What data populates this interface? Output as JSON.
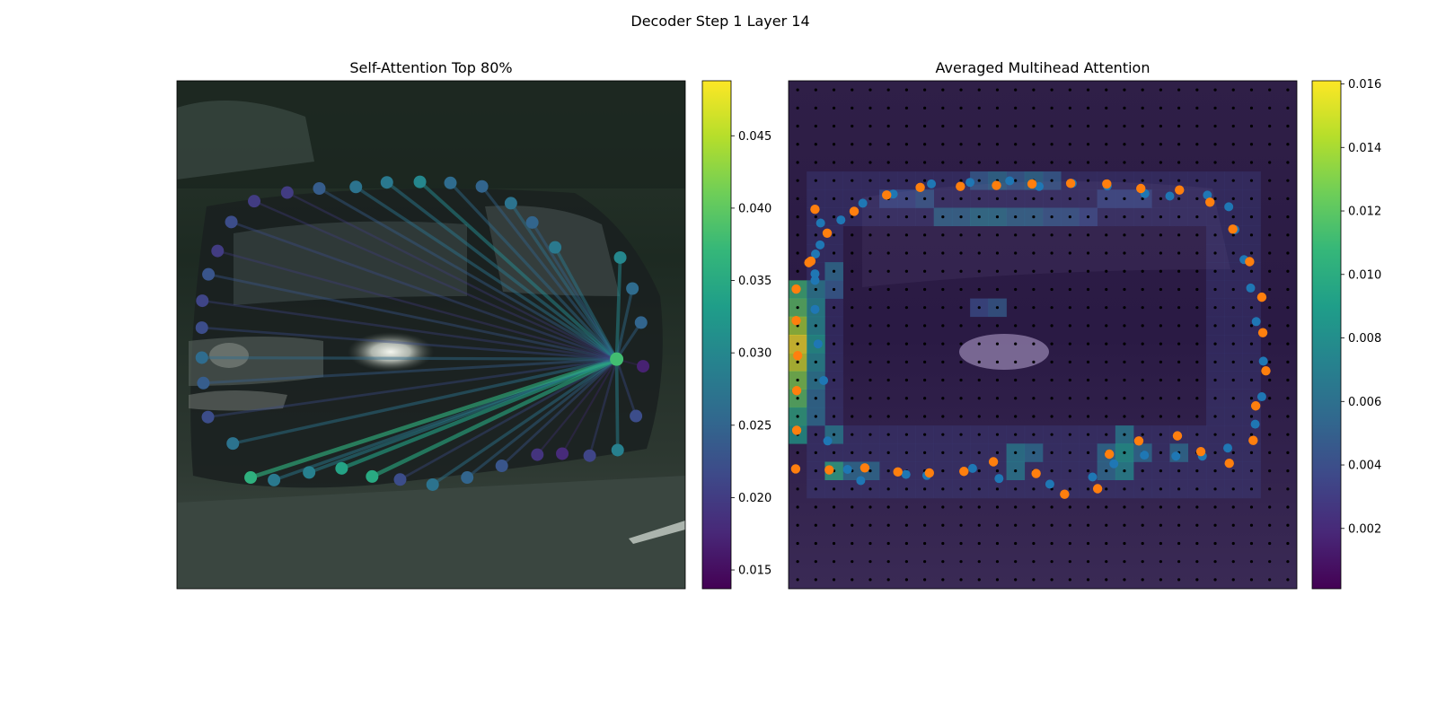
{
  "figure": {
    "suptitle": "Decoder Step 1 Layer 14"
  },
  "colors": {
    "viridis": [
      "#440154",
      "#482878",
      "#3e4989",
      "#31688e",
      "#26828e",
      "#1f9e89",
      "#35b779",
      "#6ece58",
      "#b5de2b",
      "#fde725"
    ],
    "gt_points": "#ff7f0e",
    "pred_points": "#1f77b4",
    "grid_dots": "#000000",
    "photo_road": "#3a463f",
    "photo_dark": "#1b2721"
  },
  "chart_data": [
    {
      "type": "scatter",
      "title": "Self-Attention Top 80%",
      "source_index": 9,
      "colorbar": {
        "ticks": [
          0.015,
          0.02,
          0.025,
          0.03,
          0.035,
          0.04,
          0.045
        ],
        "tick_labels": [
          "0.015",
          "0.020",
          "0.025",
          "0.030",
          "0.035",
          "0.040",
          "0.045"
        ],
        "vmin": 0.0137,
        "vmax": 0.0488
      },
      "nodes": [
        {
          "x": 0.152,
          "y": 0.237,
          "w": 0.02
        },
        {
          "x": 0.217,
          "y": 0.22,
          "w": 0.02
        },
        {
          "x": 0.28,
          "y": 0.212,
          "w": 0.024
        },
        {
          "x": 0.352,
          "y": 0.209,
          "w": 0.027
        },
        {
          "x": 0.413,
          "y": 0.2,
          "w": 0.028
        },
        {
          "x": 0.478,
          "y": 0.199,
          "w": 0.03
        },
        {
          "x": 0.538,
          "y": 0.201,
          "w": 0.026
        },
        {
          "x": 0.6,
          "y": 0.208,
          "w": 0.025
        },
        {
          "x": 0.657,
          "y": 0.241,
          "w": 0.027
        },
        {
          "x": 0.865,
          "y": 0.548,
          "w": 0.038
        },
        {
          "x": 0.917,
          "y": 0.562,
          "w": 0.017
        },
        {
          "x": 0.903,
          "y": 0.66,
          "w": 0.022
        },
        {
          "x": 0.867,
          "y": 0.727,
          "w": 0.029
        },
        {
          "x": 0.812,
          "y": 0.738,
          "w": 0.021
        },
        {
          "x": 0.758,
          "y": 0.734,
          "w": 0.018
        },
        {
          "x": 0.709,
          "y": 0.736,
          "w": 0.019
        },
        {
          "x": 0.639,
          "y": 0.758,
          "w": 0.023
        },
        {
          "x": 0.571,
          "y": 0.781,
          "w": 0.025
        },
        {
          "x": 0.503,
          "y": 0.795,
          "w": 0.027
        },
        {
          "x": 0.439,
          "y": 0.785,
          "w": 0.022
        },
        {
          "x": 0.384,
          "y": 0.779,
          "w": 0.035
        },
        {
          "x": 0.324,
          "y": 0.763,
          "w": 0.034
        },
        {
          "x": 0.26,
          "y": 0.771,
          "w": 0.029
        },
        {
          "x": 0.191,
          "y": 0.786,
          "w": 0.028
        },
        {
          "x": 0.145,
          "y": 0.781,
          "w": 0.036
        },
        {
          "x": 0.11,
          "y": 0.714,
          "w": 0.027
        },
        {
          "x": 0.061,
          "y": 0.662,
          "w": 0.022
        },
        {
          "x": 0.052,
          "y": 0.595,
          "w": 0.024
        },
        {
          "x": 0.049,
          "y": 0.545,
          "w": 0.026
        },
        {
          "x": 0.049,
          "y": 0.486,
          "w": 0.022
        },
        {
          "x": 0.05,
          "y": 0.433,
          "w": 0.021
        },
        {
          "x": 0.062,
          "y": 0.381,
          "w": 0.023
        },
        {
          "x": 0.08,
          "y": 0.335,
          "w": 0.02
        },
        {
          "x": 0.107,
          "y": 0.278,
          "w": 0.022
        },
        {
          "x": 0.699,
          "y": 0.279,
          "w": 0.025
        },
        {
          "x": 0.744,
          "y": 0.328,
          "w": 0.028
        },
        {
          "x": 0.872,
          "y": 0.348,
          "w": 0.03
        },
        {
          "x": 0.896,
          "y": 0.409,
          "w": 0.026
        },
        {
          "x": 0.913,
          "y": 0.476,
          "w": 0.025
        }
      ]
    },
    {
      "type": "heatmap",
      "title": "Averaged Multihead Attention",
      "colorbar": {
        "ticks": [
          0.002,
          0.004,
          0.006,
          0.008,
          0.01,
          0.012,
          0.014,
          0.016
        ],
        "tick_labels": [
          "0.002",
          "0.004",
          "0.006",
          "0.008",
          "0.010",
          "0.012",
          "0.014",
          "0.016"
        ],
        "vmin": 0.0001,
        "vmax": 0.0161
      },
      "grid": {
        "rows": 28,
        "cols": 28
      },
      "hot_cells": [
        {
          "r": 11,
          "c": 0,
          "v": 0.011
        },
        {
          "r": 12,
          "c": 0,
          "v": 0.012
        },
        {
          "r": 13,
          "c": 0,
          "v": 0.014
        },
        {
          "r": 14,
          "c": 0,
          "v": 0.016
        },
        {
          "r": 15,
          "c": 0,
          "v": 0.015
        },
        {
          "r": 16,
          "c": 0,
          "v": 0.013
        },
        {
          "r": 17,
          "c": 0,
          "v": 0.012
        },
        {
          "r": 18,
          "c": 0,
          "v": 0.01
        },
        {
          "r": 19,
          "c": 0,
          "v": 0.009
        },
        {
          "r": 11,
          "c": 1,
          "v": 0.007
        },
        {
          "r": 12,
          "c": 1,
          "v": 0.008
        },
        {
          "r": 13,
          "c": 1,
          "v": 0.008
        },
        {
          "r": 14,
          "c": 1,
          "v": 0.009
        },
        {
          "r": 15,
          "c": 1,
          "v": 0.008
        },
        {
          "r": 16,
          "c": 1,
          "v": 0.007
        },
        {
          "r": 17,
          "c": 1,
          "v": 0.006
        },
        {
          "r": 18,
          "c": 1,
          "v": 0.006
        },
        {
          "r": 10,
          "c": 2,
          "v": 0.006
        },
        {
          "r": 11,
          "c": 2,
          "v": 0.005
        },
        {
          "r": 19,
          "c": 2,
          "v": 0.007
        },
        {
          "r": 21,
          "c": 2,
          "v": 0.01
        },
        {
          "r": 21,
          "c": 3,
          "v": 0.006
        },
        {
          "r": 21,
          "c": 4,
          "v": 0.006
        },
        {
          "r": 20,
          "c": 12,
          "v": 0.007
        },
        {
          "r": 21,
          "c": 12,
          "v": 0.007
        },
        {
          "r": 20,
          "c": 13,
          "v": 0.006
        },
        {
          "r": 20,
          "c": 17,
          "v": 0.006
        },
        {
          "r": 21,
          "c": 17,
          "v": 0.006
        },
        {
          "r": 19,
          "c": 18,
          "v": 0.007
        },
        {
          "r": 20,
          "c": 18,
          "v": 0.009
        },
        {
          "r": 21,
          "c": 18,
          "v": 0.008
        },
        {
          "r": 20,
          "c": 19,
          "v": 0.006
        },
        {
          "r": 20,
          "c": 21,
          "v": 0.006
        },
        {
          "r": 5,
          "c": 10,
          "v": 0.005
        },
        {
          "r": 5,
          "c": 11,
          "v": 0.006
        },
        {
          "r": 5,
          "c": 12,
          "v": 0.005
        },
        {
          "r": 5,
          "c": 13,
          "v": 0.006
        },
        {
          "r": 5,
          "c": 14,
          "v": 0.005
        },
        {
          "r": 7,
          "c": 8,
          "v": 0.006
        },
        {
          "r": 7,
          "c": 9,
          "v": 0.006
        },
        {
          "r": 7,
          "c": 10,
          "v": 0.007
        },
        {
          "r": 7,
          "c": 11,
          "v": 0.007
        },
        {
          "r": 7,
          "c": 12,
          "v": 0.006
        },
        {
          "r": 7,
          "c": 13,
          "v": 0.006
        },
        {
          "r": 7,
          "c": 14,
          "v": 0.005
        },
        {
          "r": 7,
          "c": 15,
          "v": 0.005
        },
        {
          "r": 7,
          "c": 16,
          "v": 0.004
        },
        {
          "r": 6,
          "c": 5,
          "v": 0.004
        },
        {
          "r": 6,
          "c": 6,
          "v": 0.004
        },
        {
          "r": 6,
          "c": 7,
          "v": 0.005
        },
        {
          "r": 6,
          "c": 17,
          "v": 0.004
        },
        {
          "r": 6,
          "c": 18,
          "v": 0.004
        },
        {
          "r": 6,
          "c": 19,
          "v": 0.004
        },
        {
          "r": 12,
          "c": 10,
          "v": 0.004
        },
        {
          "r": 12,
          "c": 11,
          "v": 0.005
        }
      ],
      "background_value": 0.0016,
      "band_value": 0.0035,
      "gt_points": [
        [
          0.052,
          0.253
        ],
        [
          0.044,
          0.355
        ],
        [
          0.015,
          0.41
        ],
        [
          0.015,
          0.472
        ],
        [
          0.018,
          0.541
        ],
        [
          0.016,
          0.61
        ],
        [
          0.016,
          0.688
        ],
        [
          0.014,
          0.764
        ],
        [
          0.08,
          0.766
        ],
        [
          0.15,
          0.762
        ],
        [
          0.215,
          0.77
        ],
        [
          0.277,
          0.772
        ],
        [
          0.345,
          0.769
        ],
        [
          0.403,
          0.75
        ],
        [
          0.487,
          0.773
        ],
        [
          0.543,
          0.814
        ],
        [
          0.608,
          0.803
        ],
        [
          0.631,
          0.735
        ],
        [
          0.689,
          0.709
        ],
        [
          0.765,
          0.699
        ],
        [
          0.811,
          0.73
        ],
        [
          0.867,
          0.753
        ],
        [
          0.914,
          0.708
        ],
        [
          0.919,
          0.64
        ],
        [
          0.939,
          0.571
        ],
        [
          0.933,
          0.496
        ],
        [
          0.931,
          0.426
        ],
        [
          0.907,
          0.356
        ],
        [
          0.874,
          0.292
        ],
        [
          0.829,
          0.239
        ],
        [
          0.769,
          0.215
        ],
        [
          0.693,
          0.212
        ],
        [
          0.626,
          0.203
        ],
        [
          0.555,
          0.202
        ],
        [
          0.479,
          0.203
        ],
        [
          0.409,
          0.206
        ],
        [
          0.338,
          0.208
        ],
        [
          0.259,
          0.21
        ],
        [
          0.193,
          0.225
        ],
        [
          0.129,
          0.257
        ],
        [
          0.076,
          0.3
        ],
        [
          0.04,
          0.358
        ]
      ],
      "pred_points": [
        [
          0.063,
          0.28
        ],
        [
          0.053,
          0.341
        ],
        [
          0.052,
          0.393
        ],
        [
          0.052,
          0.45
        ],
        [
          0.058,
          0.518
        ],
        [
          0.069,
          0.59
        ],
        [
          0.077,
          0.709
        ],
        [
          0.116,
          0.765
        ],
        [
          0.142,
          0.787
        ],
        [
          0.231,
          0.775
        ],
        [
          0.272,
          0.777
        ],
        [
          0.362,
          0.763
        ],
        [
          0.414,
          0.783
        ],
        [
          0.514,
          0.794
        ],
        [
          0.598,
          0.78
        ],
        [
          0.64,
          0.754
        ],
        [
          0.7,
          0.737
        ],
        [
          0.762,
          0.739
        ],
        [
          0.814,
          0.739
        ],
        [
          0.864,
          0.723
        ],
        [
          0.918,
          0.676
        ],
        [
          0.931,
          0.622
        ],
        [
          0.934,
          0.552
        ],
        [
          0.92,
          0.474
        ],
        [
          0.909,
          0.408
        ],
        [
          0.896,
          0.352
        ],
        [
          0.878,
          0.293
        ],
        [
          0.866,
          0.248
        ],
        [
          0.824,
          0.225
        ],
        [
          0.75,
          0.227
        ],
        [
          0.701,
          0.222
        ],
        [
          0.627,
          0.207
        ],
        [
          0.558,
          0.202
        ],
        [
          0.493,
          0.208
        ],
        [
          0.435,
          0.197
        ],
        [
          0.357,
          0.2
        ],
        [
          0.281,
          0.203
        ],
        [
          0.206,
          0.223
        ],
        [
          0.146,
          0.241
        ],
        [
          0.103,
          0.274
        ],
        [
          0.062,
          0.323
        ],
        [
          0.052,
          0.38
        ]
      ]
    }
  ]
}
